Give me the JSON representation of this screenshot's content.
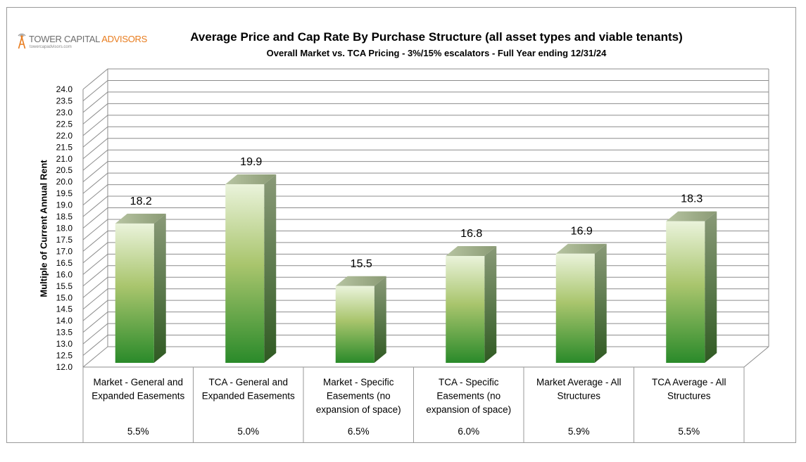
{
  "logo": {
    "name_part1": "TOWER CAPITAL ",
    "name_part2": "ADVISORS",
    "url": "towercapadvisors.com"
  },
  "chart_data": {
    "type": "bar",
    "title": "Average Price and Cap Rate By Purchase Structure (all asset types and viable tenants)",
    "subtitle": "Overall Market vs. TCA Pricing - 3%/15% escalators - Full Year ending 12/31/24",
    "ylabel": "Multiple of Current Annual Rent",
    "ylim": [
      12.0,
      24.0
    ],
    "ytick_step": 0.5,
    "grid": true,
    "categories": [
      [
        "Market - General and",
        "Expanded Easements"
      ],
      [
        "TCA - General and",
        "Expanded Easements"
      ],
      [
        "Market - Specific",
        "Easements (no",
        "expansion of space)"
      ],
      [
        "TCA - Specific",
        "Easements (no",
        "expansion of space)"
      ],
      [
        "Market Average - All",
        "Structures"
      ],
      [
        "TCA Average - All",
        "Structures"
      ]
    ],
    "values": [
      18.2,
      19.9,
      15.5,
      16.8,
      16.9,
      18.3
    ],
    "data_labels": [
      "18.2",
      "19.9",
      "15.5",
      "16.8",
      "16.9",
      "18.3"
    ],
    "table_row": [
      "5.5%",
      "5.0%",
      "6.5%",
      "6.0%",
      "5.9%",
      "5.5%"
    ],
    "colors": {
      "bar_top": "#e8f1d6",
      "bar_mid": "#a6c46a",
      "bar_bottom": "#2e8b2e",
      "bar_side": "#47632f",
      "grid": "#8c8c8c"
    }
  }
}
